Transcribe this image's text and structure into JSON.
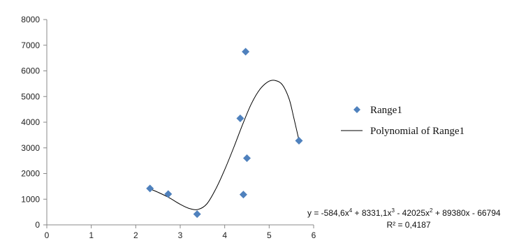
{
  "chart_data": {
    "type": "scatter",
    "title": "",
    "xlabel": "",
    "ylabel": "",
    "xlim": [
      0,
      6
    ],
    "ylim": [
      0,
      8000
    ],
    "x_ticks": [
      "0",
      "1",
      "2",
      "3",
      "4",
      "5",
      "6"
    ],
    "y_ticks": [
      "0",
      "1000",
      "2000",
      "3000",
      "4000",
      "5000",
      "6000",
      "7000",
      "8000"
    ],
    "grid": false,
    "legend_position": "right",
    "series": [
      {
        "name": "Range1",
        "marker": "diamond",
        "color": "#4f81bd",
        "points": [
          {
            "x": 2.32,
            "y": 1420
          },
          {
            "x": 2.73,
            "y": 1200
          },
          {
            "x": 3.38,
            "y": 420
          },
          {
            "x": 4.35,
            "y": 4150
          },
          {
            "x": 4.42,
            "y": 1180
          },
          {
            "x": 4.47,
            "y": 6750
          },
          {
            "x": 4.5,
            "y": 2600
          },
          {
            "x": 5.67,
            "y": 3280
          }
        ]
      }
    ],
    "trendline": {
      "name": "Polynomial of Range1",
      "color": "#000000",
      "x_range": [
        2.32,
        5.67
      ],
      "points": [
        {
          "x": 2.32,
          "y": 1400
        },
        {
          "x": 2.5,
          "y": 1270
        },
        {
          "x": 2.75,
          "y": 1060
        },
        {
          "x": 3.0,
          "y": 800
        },
        {
          "x": 3.2,
          "y": 640
        },
        {
          "x": 3.4,
          "y": 600
        },
        {
          "x": 3.6,
          "y": 820
        },
        {
          "x": 3.8,
          "y": 1400
        },
        {
          "x": 4.0,
          "y": 2150
        },
        {
          "x": 4.2,
          "y": 3000
        },
        {
          "x": 4.4,
          "y": 3900
        },
        {
          "x": 4.6,
          "y": 4720
        },
        {
          "x": 4.8,
          "y": 5300
        },
        {
          "x": 5.0,
          "y": 5600
        },
        {
          "x": 5.15,
          "y": 5620
        },
        {
          "x": 5.3,
          "y": 5450
        },
        {
          "x": 5.45,
          "y": 4900
        },
        {
          "x": 5.55,
          "y": 4200
        },
        {
          "x": 5.67,
          "y": 3300
        }
      ],
      "equation_parts": [
        "y = -584,6x",
        "4",
        " + 8331,1x",
        "3",
        " - 42025x",
        "2",
        " + 89380x - 66794"
      ],
      "r_squared": "R² = 0,4187"
    }
  }
}
